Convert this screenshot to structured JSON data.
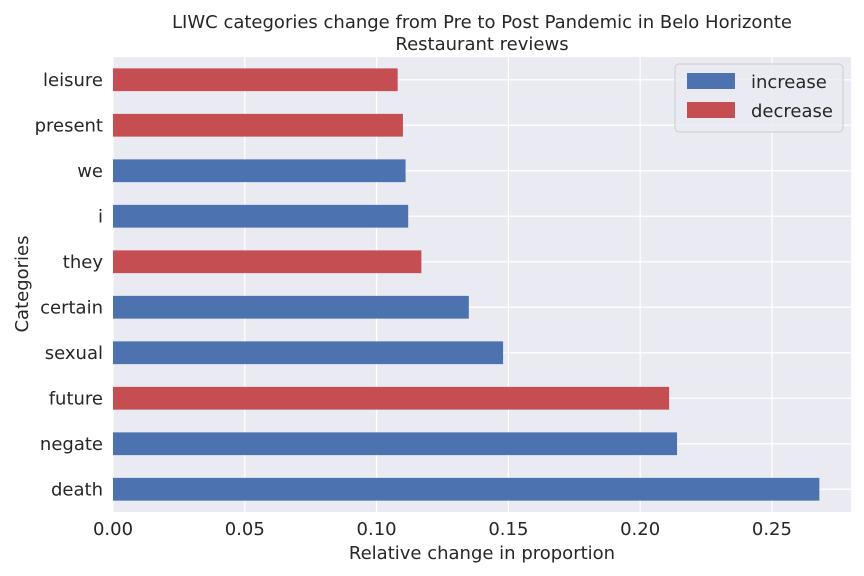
{
  "chart_data": {
    "type": "bar",
    "orientation": "horizontal",
    "title": "LIWC categories change from Pre to Post Pandemic in Belo Horizonte",
    "subtitle": "Restaurant reviews",
    "xlabel": "Relative change in proportion",
    "ylabel": "Categories",
    "xlim": [
      0,
      0.28
    ],
    "xticks": [
      "0.00",
      "0.05",
      "0.10",
      "0.15",
      "0.20",
      "0.25"
    ],
    "grid": true,
    "legend_position": "top-right",
    "legend": [
      {
        "label": "increase",
        "color": "#4c72b0"
      },
      {
        "label": "decrease",
        "color": "#c44e52"
      }
    ],
    "categories": [
      "leisure",
      "present",
      "we",
      "i",
      "they",
      "certain",
      "sexual",
      "future",
      "negate",
      "death"
    ],
    "values": [
      0.108,
      0.11,
      0.111,
      0.112,
      0.117,
      0.135,
      0.148,
      0.211,
      0.214,
      0.268
    ],
    "direction": [
      "decrease",
      "decrease",
      "increase",
      "increase",
      "decrease",
      "increase",
      "increase",
      "decrease",
      "increase",
      "increase"
    ]
  },
  "colors": {
    "plot_background": "#eaeaf2",
    "grid": "#ffffff",
    "increase": "#4c72b0",
    "decrease": "#c44e52"
  }
}
